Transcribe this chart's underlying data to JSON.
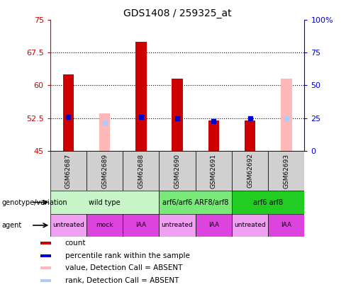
{
  "title": "GDS1408 / 259325_at",
  "samples": [
    "GSM62687",
    "GSM62689",
    "GSM62688",
    "GSM62690",
    "GSM62691",
    "GSM62692",
    "GSM62693"
  ],
  "ylim_left": [
    45,
    75
  ],
  "ylim_right": [
    0,
    100
  ],
  "yticks_left": [
    45,
    52.5,
    60,
    67.5,
    75
  ],
  "yticks_right": [
    0,
    25,
    50,
    75,
    100
  ],
  "ytick_labels_left": [
    "45",
    "52.5",
    "60",
    "67.5",
    "75"
  ],
  "ytick_labels_right": [
    "0",
    "25",
    "50",
    "75",
    "100%"
  ],
  "hlines": [
    52.5,
    60,
    67.5
  ],
  "bar_bottom": 45,
  "red_bars": {
    "GSM62687": 62.5,
    "GSM62689": null,
    "GSM62688": 70.0,
    "GSM62690": 61.5,
    "GSM62691": 52.0,
    "GSM62692": 52.0,
    "GSM62693": null
  },
  "pink_bars": {
    "GSM62687": null,
    "GSM62689": 53.5,
    "GSM62688": null,
    "GSM62690": null,
    "GSM62691": null,
    "GSM62692": null,
    "GSM62693": 61.5
  },
  "blue_squares": {
    "GSM62687": 52.8,
    "GSM62689": null,
    "GSM62688": 52.8,
    "GSM62690": 52.5,
    "GSM62691": 51.8,
    "GSM62692": 52.5,
    "GSM62693": null
  },
  "light_blue_squares": {
    "GSM62687": null,
    "GSM62689": 51.5,
    "GSM62688": null,
    "GSM62690": null,
    "GSM62691": null,
    "GSM62692": null,
    "GSM62693": 52.5
  },
  "genotype_groups": [
    {
      "label": "wild type",
      "cols": [
        0,
        1,
        2
      ],
      "color": "#c8f5c8"
    },
    {
      "label": "arf6/arf6 ARF8/arf8",
      "cols": [
        3,
        4
      ],
      "color": "#78e878"
    },
    {
      "label": "arf6 arf8",
      "cols": [
        5,
        6
      ],
      "color": "#22cc22"
    }
  ],
  "agent_groups": [
    {
      "label": "untreated",
      "col": 0,
      "color": "#f0a0f0"
    },
    {
      "label": "mock",
      "col": 1,
      "color": "#dd44dd"
    },
    {
      "label": "IAA",
      "col": 2,
      "color": "#dd44dd"
    },
    {
      "label": "untreated",
      "col": 3,
      "color": "#f0a0f0"
    },
    {
      "label": "IAA",
      "col": 4,
      "color": "#dd44dd"
    },
    {
      "label": "untreated",
      "col": 5,
      "color": "#f0a0f0"
    },
    {
      "label": "IAA",
      "col": 6,
      "color": "#dd44dd"
    }
  ],
  "legend_items": [
    {
      "label": "count",
      "color": "#cc0000"
    },
    {
      "label": "percentile rank within the sample",
      "color": "#0000cc"
    },
    {
      "label": "value, Detection Call = ABSENT",
      "color": "#ffb8b8"
    },
    {
      "label": "rank, Detection Call = ABSENT",
      "color": "#aaccff"
    }
  ],
  "bar_color_red": "#cc0000",
  "bar_color_pink": "#ffb8b8",
  "sq_color_blue": "#0000cc",
  "sq_color_lightblue": "#aaccff",
  "axis_color_left": "#cc0000",
  "axis_color_right": "#0000cc",
  "bar_width": 0.3,
  "gray_bg": "#d0d0d0"
}
